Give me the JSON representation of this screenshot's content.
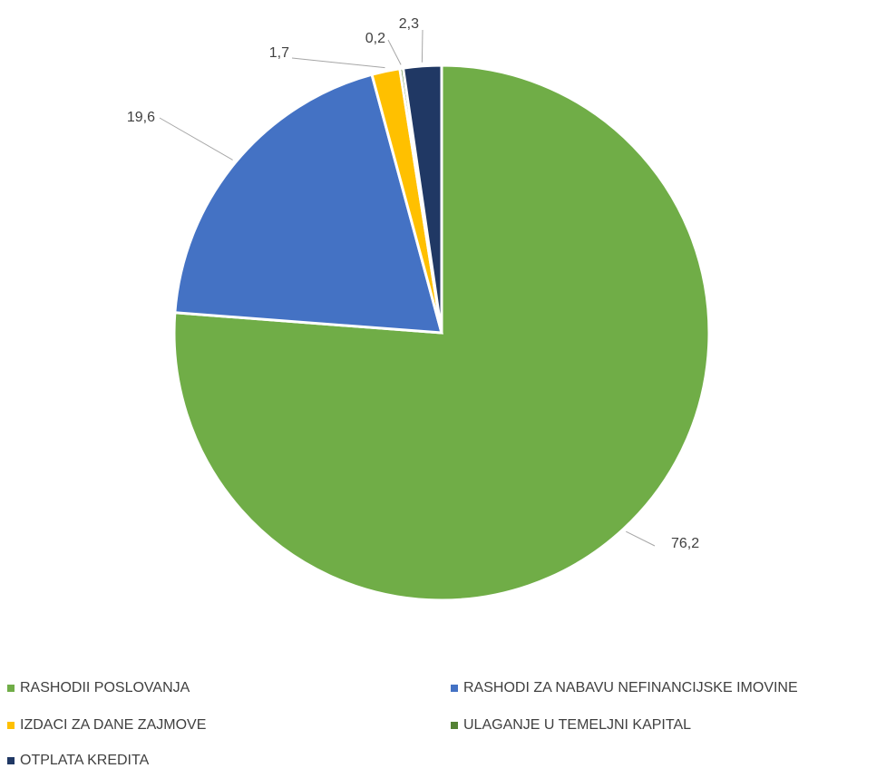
{
  "chart_data": {
    "type": "pie",
    "categories": [
      "RASHODII POSLOVANJA",
      "RASHODI ZA NABAVU NEFINANCIJSKE IMOVINE",
      "IZDACI ZA DANE ZAJMOVE",
      "ULAGANJE U TEMELJNI KAPITAL",
      "OTPLATA KREDITA"
    ],
    "values": [
      76.2,
      19.6,
      1.7,
      0.2,
      2.3
    ],
    "data_labels": [
      "76,2",
      "19,6",
      "1,7",
      "0,2",
      "2,3"
    ],
    "colors": [
      "#70AD47",
      "#4472C4",
      "#FFC000",
      "#548235",
      "#203864"
    ],
    "legend_position": "bottom",
    "start_angle_deg": 0,
    "direction": "clockwise"
  }
}
